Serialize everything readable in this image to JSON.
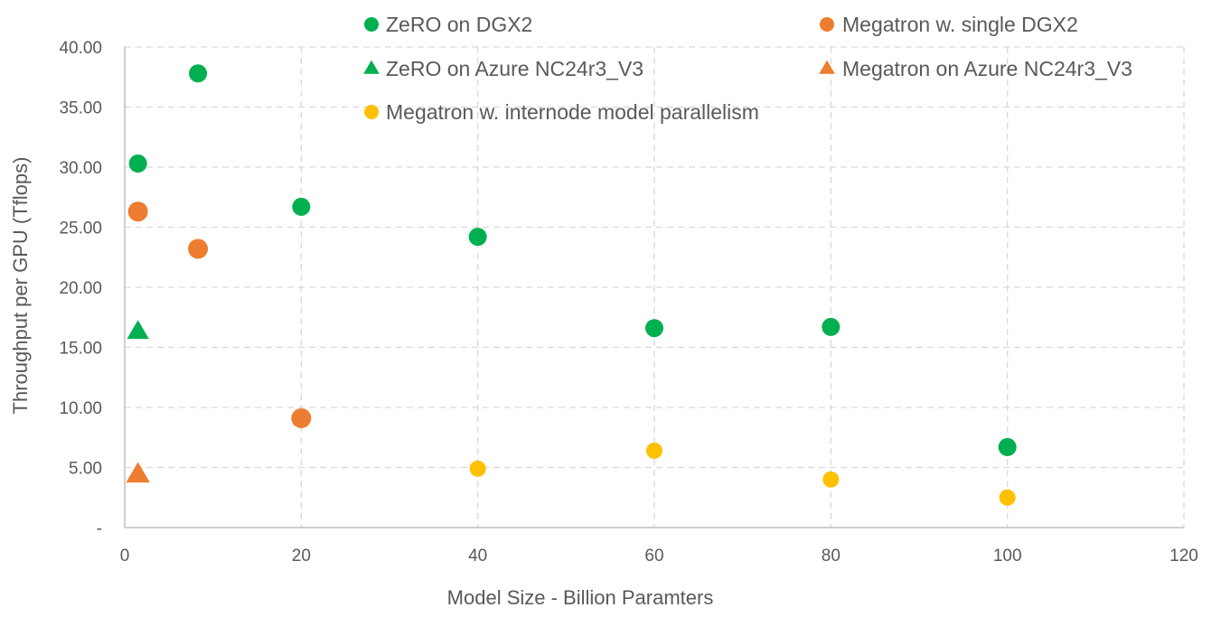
{
  "chart_data": {
    "type": "scatter",
    "title": "",
    "xlabel": "Model Size - Billion Paramters",
    "ylabel": "Throughput per GPU (Tflops)",
    "xlim": [
      0,
      120
    ],
    "ylim": [
      0,
      40
    ],
    "x_ticks": [
      0,
      20,
      40,
      60,
      80,
      100,
      120
    ],
    "x_tick_labels": [
      "0",
      "20",
      "40",
      "60",
      "80",
      "100",
      "120"
    ],
    "y_ticks": [
      0,
      5,
      10,
      15,
      20,
      25,
      30,
      35,
      40
    ],
    "y_tick_labels": [
      "-",
      "5.00",
      "10.00",
      "15.00",
      "20.00",
      "25.00",
      "30.00",
      "35.00",
      "40.00"
    ],
    "grid": true,
    "legend_position": "top",
    "series": [
      {
        "name": "ZeRO on DGX2",
        "marker": "circle",
        "color": "#00b050",
        "points": [
          {
            "x": 1.5,
            "y": 30.3
          },
          {
            "x": 8.3,
            "y": 37.8
          },
          {
            "x": 20,
            "y": 26.7
          },
          {
            "x": 40,
            "y": 24.2
          },
          {
            "x": 60,
            "y": 16.6
          },
          {
            "x": 80,
            "y": 16.7
          },
          {
            "x": 100,
            "y": 6.7
          }
        ]
      },
      {
        "name": "Megatron w. single DGX2",
        "marker": "circle",
        "color": "#ed7d31",
        "points": [
          {
            "x": 1.5,
            "y": 26.3
          },
          {
            "x": 8.3,
            "y": 23.2
          },
          {
            "x": 20,
            "y": 9.1
          }
        ]
      },
      {
        "name": "ZeRO on Azure NC24r3_V3",
        "marker": "triangle",
        "color": "#00b050",
        "points": [
          {
            "x": 1.5,
            "y": 16.3
          }
        ]
      },
      {
        "name": "Megatron on Azure NC24r3_V3",
        "marker": "triangle",
        "color": "#ed7d31",
        "points": [
          {
            "x": 1.5,
            "y": 4.4
          }
        ]
      },
      {
        "name": "Megatron w. internode model parallelism",
        "marker": "circle",
        "color": "#ffc000",
        "points": [
          {
            "x": 40,
            "y": 4.9
          },
          {
            "x": 60,
            "y": 6.4
          },
          {
            "x": 80,
            "y": 4.0
          },
          {
            "x": 100,
            "y": 2.5
          }
        ]
      }
    ]
  }
}
